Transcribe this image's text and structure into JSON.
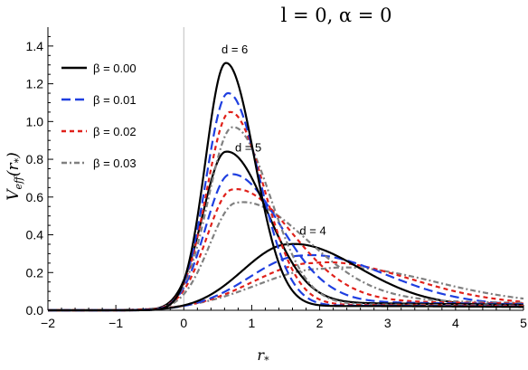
{
  "chart_data": {
    "type": "line",
    "title": "l = 0,   α = 0",
    "xlabel": "r*",
    "ylabel": "Veff(r*)",
    "xlim": [
      -2,
      5
    ],
    "ylim": [
      0,
      1.5
    ],
    "x_ticks": [
      "−2",
      "−1",
      "0",
      "1",
      "2",
      "3",
      "4",
      "5"
    ],
    "y_ticks": [
      "0.0",
      "0.2",
      "0.4",
      "0.6",
      "0.8",
      "1.0",
      "1.2",
      "1.4"
    ],
    "legend": {
      "position": "top-left"
    },
    "styles": [
      {
        "label": "β = 0.00",
        "color": "#000000",
        "dash": "solid"
      },
      {
        "label": "β = 0.01",
        "color": "#1f3fe0",
        "dash": "long-dash"
      },
      {
        "label": "β = 0.02",
        "color": "#e0201a",
        "dash": "short-dash"
      },
      {
        "label": "β = 0.03",
        "color": "#808080",
        "dash": "dash-dot"
      }
    ],
    "annotations": [
      {
        "text": "d = 6",
        "x": 0.75,
        "y": 1.36
      },
      {
        "text": "d = 5",
        "x": 0.95,
        "y": 0.84
      },
      {
        "text": "d = 4",
        "x": 1.9,
        "y": 0.4
      }
    ],
    "series": [
      {
        "d": 6,
        "beta": "0.00",
        "peak_x": 0.62,
        "peak_y": 1.31,
        "sigma_left": 0.3,
        "sigma_right": 0.42,
        "tail": 0.028
      },
      {
        "d": 6,
        "beta": "0.01",
        "peak_x": 0.65,
        "peak_y": 1.15,
        "sigma_left": 0.32,
        "sigma_right": 0.46,
        "tail": 0.03
      },
      {
        "d": 6,
        "beta": "0.02",
        "peak_x": 0.68,
        "peak_y": 1.05,
        "sigma_left": 0.34,
        "sigma_right": 0.5,
        "tail": 0.034
      },
      {
        "d": 6,
        "beta": "0.03",
        "peak_x": 0.72,
        "peak_y": 0.97,
        "sigma_left": 0.36,
        "sigma_right": 0.55,
        "tail": 0.038
      },
      {
        "d": 5,
        "beta": "0.00",
        "peak_x": 0.62,
        "peak_y": 0.84,
        "sigma_left": 0.34,
        "sigma_right": 0.6,
        "tail": 0.045
      },
      {
        "d": 5,
        "beta": "0.01",
        "peak_x": 0.68,
        "peak_y": 0.72,
        "sigma_left": 0.36,
        "sigma_right": 0.72,
        "tail": 0.05
      },
      {
        "d": 5,
        "beta": "0.02",
        "peak_x": 0.72,
        "peak_y": 0.64,
        "sigma_left": 0.38,
        "sigma_right": 0.85,
        "tail": 0.055
      },
      {
        "d": 5,
        "beta": "0.03",
        "peak_x": 0.78,
        "peak_y": 0.57,
        "sigma_left": 0.4,
        "sigma_right": 1.0,
        "tail": 0.06
      },
      {
        "d": 4,
        "beta": "0.00",
        "peak_x": 1.55,
        "peak_y": 0.35,
        "sigma_left": 0.68,
        "sigma_right": 1.0,
        "tail": 0.03
      },
      {
        "d": 4,
        "beta": "0.01",
        "peak_x": 1.75,
        "peak_y": 0.29,
        "sigma_left": 0.78,
        "sigma_right": 1.15,
        "tail": 0.035
      },
      {
        "d": 4,
        "beta": "0.02",
        "peak_x": 1.9,
        "peak_y": 0.25,
        "sigma_left": 0.88,
        "sigma_right": 1.3,
        "tail": 0.04
      },
      {
        "d": 4,
        "beta": "0.03",
        "peak_x": 2.05,
        "peak_y": 0.22,
        "sigma_left": 0.98,
        "sigma_right": 1.45,
        "tail": 0.045
      }
    ]
  }
}
